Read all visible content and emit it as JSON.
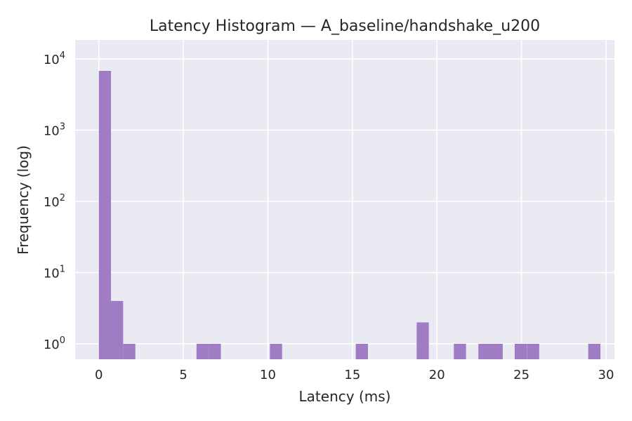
{
  "chart_data": {
    "type": "bar",
    "title": "Latency Histogram — A_baseline/handshake_u200",
    "xlabel": "Latency (ms)",
    "ylabel": "Frequency (log)",
    "y_scale": "log",
    "grid": true,
    "xlim": [
      -1.4,
      30.5
    ],
    "ylim": [
      0.6,
      10000
    ],
    "x_ticks": [
      0,
      5,
      10,
      15,
      20,
      25,
      30
    ],
    "y_ticks": [
      {
        "base": "10",
        "exp": "0",
        "value": 1
      },
      {
        "base": "10",
        "exp": "1",
        "value": 10
      },
      {
        "base": "10",
        "exp": "2",
        "value": 100
      },
      {
        "base": "10",
        "exp": "3",
        "value": 1000
      },
      {
        "base": "10",
        "exp": "4",
        "value": 10000
      }
    ],
    "bin_width": 0.72,
    "bins": [
      {
        "x0": 0.0,
        "count": 6800
      },
      {
        "x0": 0.72,
        "count": 4
      },
      {
        "x0": 1.44,
        "count": 1
      },
      {
        "x0": 5.78,
        "count": 1
      },
      {
        "x0": 6.5,
        "count": 1
      },
      {
        "x0": 10.12,
        "count": 1
      },
      {
        "x0": 15.2,
        "count": 1
      },
      {
        "x0": 18.8,
        "count": 2
      },
      {
        "x0": 21.0,
        "count": 1
      },
      {
        "x0": 22.45,
        "count": 1
      },
      {
        "x0": 23.17,
        "count": 1
      },
      {
        "x0": 24.6,
        "count": 1
      },
      {
        "x0": 25.33,
        "count": 1
      },
      {
        "x0": 28.95,
        "count": 1
      }
    ],
    "colors": {
      "bar": "#a07cc5",
      "background": "#eaeaf2",
      "grid": "#ffffff",
      "text": "#262626"
    }
  }
}
